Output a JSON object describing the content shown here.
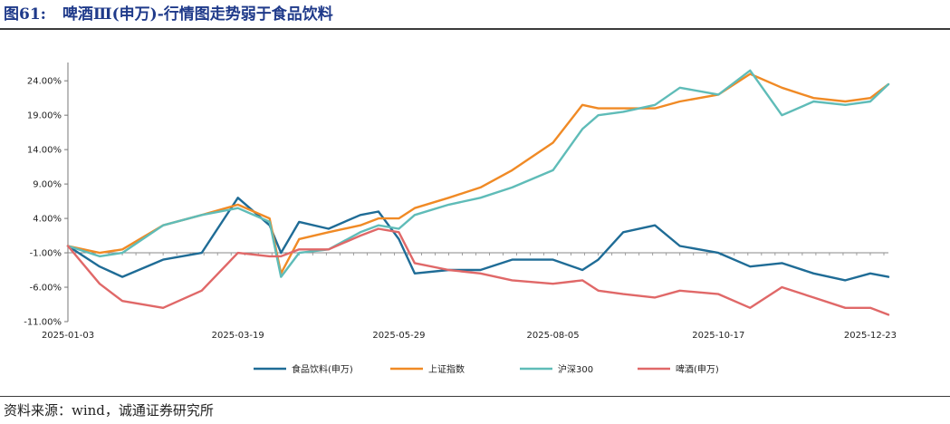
{
  "header": {
    "figure_number": "图61:",
    "title": "啤酒Ⅲ(申万)-行情图走势弱于食品饮料"
  },
  "footer": {
    "source": "资料来源：wind，诚通证券研究所"
  },
  "chart_data": {
    "type": "line",
    "ylim": [
      -11,
      26
    ],
    "y_ticks": [
      -11,
      -6,
      -1,
      4,
      9,
      14,
      19,
      24
    ],
    "y_tick_labels": [
      "-11.00%",
      "-6.00%",
      "-1.00%",
      "4.00%",
      "9.00%",
      "14.00%",
      "19.00%",
      "24.00%"
    ],
    "x_tick_labels": [
      "2025-01-03",
      "2025-03-19",
      "2025-05-29",
      "2025-08-05",
      "2025-10-17",
      "2025-12-23"
    ],
    "x": [
      "2025-01-03",
      "2025-01-17",
      "2025-01-27",
      "2025-02-14",
      "2025-03-03",
      "2025-03-19",
      "2025-04-02",
      "2025-04-07",
      "2025-04-15",
      "2025-04-28",
      "2025-05-12",
      "2025-05-20",
      "2025-05-29",
      "2025-06-05",
      "2025-06-20",
      "2025-07-04",
      "2025-07-18",
      "2025-08-05",
      "2025-08-18",
      "2025-08-25",
      "2025-09-05",
      "2025-09-19",
      "2025-09-30",
      "2025-10-17",
      "2025-10-31",
      "2025-11-14",
      "2025-11-28",
      "2025-12-12",
      "2025-12-23",
      "2025-12-31"
    ],
    "series": [
      {
        "name": "食品饮料(申万)",
        "color": "#1f6c96",
        "values": [
          0.0,
          -3.0,
          -4.5,
          -2.0,
          -1.0,
          7.0,
          3.0,
          -1.0,
          3.5,
          2.5,
          4.5,
          5.0,
          1.0,
          -4.0,
          -3.5,
          -3.5,
          -2.0,
          -2.0,
          -3.5,
          -2.0,
          2.0,
          3.0,
          0.0,
          -1.0,
          -3.0,
          -2.5,
          -4.0,
          -5.0,
          -4.0,
          -4.5
        ]
      },
      {
        "name": "上证指数",
        "color": "#f08a25",
        "values": [
          0.0,
          -1.0,
          -0.5,
          3.0,
          4.5,
          6.0,
          4.0,
          -4.0,
          1.0,
          2.0,
          3.0,
          4.0,
          4.0,
          5.5,
          7.0,
          8.5,
          11.0,
          15.0,
          20.5,
          20.0,
          20.0,
          20.0,
          21.0,
          22.0,
          25.0,
          23.0,
          21.5,
          21.0,
          21.5,
          23.5
        ]
      },
      {
        "name": "沪深300",
        "color": "#5fbcb8",
        "values": [
          0.0,
          -1.5,
          -1.0,
          3.0,
          4.5,
          5.5,
          3.5,
          -4.5,
          -1.0,
          -0.5,
          2.0,
          3.0,
          2.5,
          4.5,
          6.0,
          7.0,
          8.5,
          11.0,
          17.0,
          19.0,
          19.5,
          20.5,
          23.0,
          22.0,
          25.5,
          19.0,
          21.0,
          20.5,
          21.0,
          23.5
        ]
      },
      {
        "name": "啤酒(申万)",
        "color": "#e06868",
        "values": [
          0.0,
          -5.5,
          -8.0,
          -9.0,
          -6.5,
          -1.0,
          -1.5,
          -1.5,
          -0.5,
          -0.5,
          1.5,
          2.5,
          2.0,
          -2.5,
          -3.5,
          -4.0,
          -5.0,
          -5.5,
          -5.0,
          -6.5,
          -7.0,
          -7.5,
          -6.5,
          -7.0,
          -9.0,
          -6.0,
          -7.5,
          -9.0,
          -9.0,
          -10.0
        ]
      }
    ]
  }
}
